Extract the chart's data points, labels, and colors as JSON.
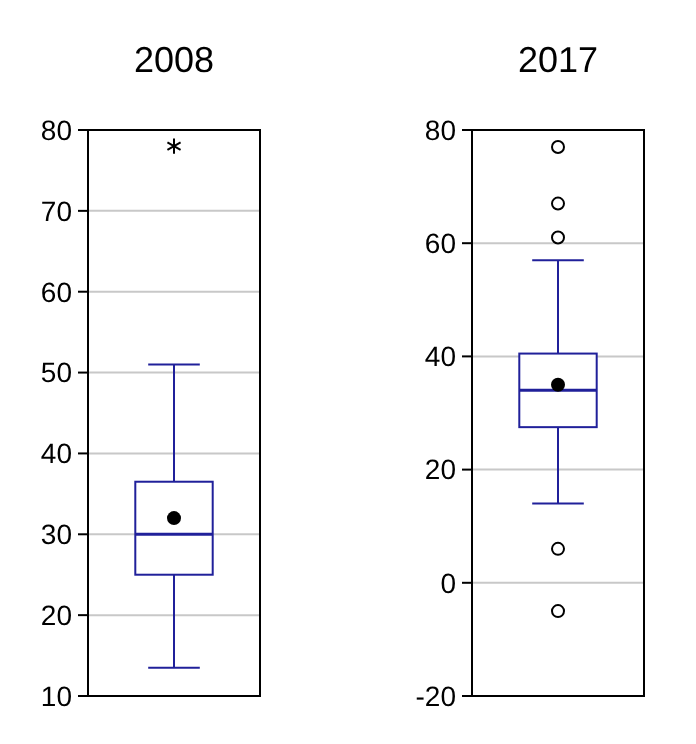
{
  "chart_data": [
    {
      "type": "box",
      "title": "2008",
      "categories": [
        null
      ],
      "color": "#20209a",
      "marker": "star",
      "grid": "y",
      "ylim": [
        10,
        80
      ],
      "yticks": [
        10,
        20,
        30,
        40,
        50,
        60,
        70,
        80
      ],
      "boxes": [
        {
          "low": 13.5,
          "q1": 25,
          "median": 30,
          "q3": 36.5,
          "high": 51,
          "mean": 32,
          "outliers": [
            78
          ]
        }
      ]
    },
    {
      "type": "box",
      "title": "2017",
      "categories": [
        null
      ],
      "color": "#20209a",
      "marker": "circle",
      "grid": "y",
      "ylim": [
        -20,
        80
      ],
      "yticks": [
        -20,
        0,
        20,
        40,
        60,
        80
      ],
      "boxes": [
        {
          "low": 14,
          "q1": 27.5,
          "median": 34,
          "q3": 40.5,
          "high": 57,
          "mean": 35,
          "outliers": [
            77,
            67,
            61,
            6,
            -5
          ]
        }
      ]
    }
  ]
}
